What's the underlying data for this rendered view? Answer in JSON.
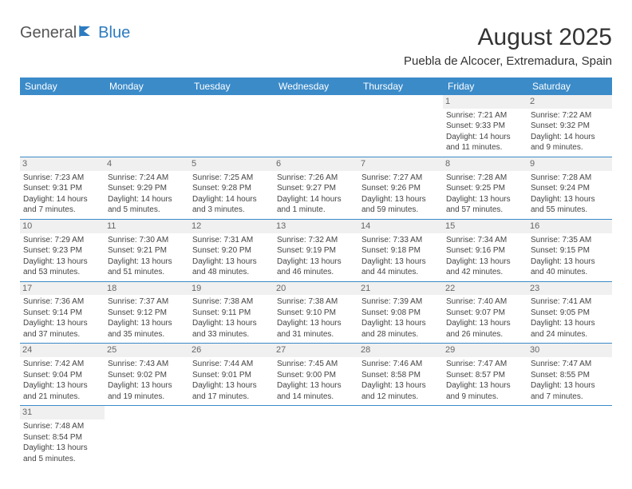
{
  "logo": {
    "text1": "General",
    "text2": "Blue"
  },
  "title": "August 2025",
  "location": "Puebla de Alcocer, Extremadura, Spain",
  "columns": [
    "Sunday",
    "Monday",
    "Tuesday",
    "Wednesday",
    "Thursday",
    "Friday",
    "Saturday"
  ],
  "colors": {
    "header_bg": "#3b8bc9",
    "header_text": "#ffffff",
    "daynum_bg": "#f0f0f0",
    "row_border": "#3b8bc9",
    "logo_blue": "#2d7bc0"
  },
  "weeks": [
    [
      null,
      null,
      null,
      null,
      null,
      {
        "n": "1",
        "sunrise": "7:21 AM",
        "sunset": "9:33 PM",
        "daylight": "14 hours and 11 minutes."
      },
      {
        "n": "2",
        "sunrise": "7:22 AM",
        "sunset": "9:32 PM",
        "daylight": "14 hours and 9 minutes."
      }
    ],
    [
      {
        "n": "3",
        "sunrise": "7:23 AM",
        "sunset": "9:31 PM",
        "daylight": "14 hours and 7 minutes."
      },
      {
        "n": "4",
        "sunrise": "7:24 AM",
        "sunset": "9:29 PM",
        "daylight": "14 hours and 5 minutes."
      },
      {
        "n": "5",
        "sunrise": "7:25 AM",
        "sunset": "9:28 PM",
        "daylight": "14 hours and 3 minutes."
      },
      {
        "n": "6",
        "sunrise": "7:26 AM",
        "sunset": "9:27 PM",
        "daylight": "14 hours and 1 minute."
      },
      {
        "n": "7",
        "sunrise": "7:27 AM",
        "sunset": "9:26 PM",
        "daylight": "13 hours and 59 minutes."
      },
      {
        "n": "8",
        "sunrise": "7:28 AM",
        "sunset": "9:25 PM",
        "daylight": "13 hours and 57 minutes."
      },
      {
        "n": "9",
        "sunrise": "7:28 AM",
        "sunset": "9:24 PM",
        "daylight": "13 hours and 55 minutes."
      }
    ],
    [
      {
        "n": "10",
        "sunrise": "7:29 AM",
        "sunset": "9:23 PM",
        "daylight": "13 hours and 53 minutes."
      },
      {
        "n": "11",
        "sunrise": "7:30 AM",
        "sunset": "9:21 PM",
        "daylight": "13 hours and 51 minutes."
      },
      {
        "n": "12",
        "sunrise": "7:31 AM",
        "sunset": "9:20 PM",
        "daylight": "13 hours and 48 minutes."
      },
      {
        "n": "13",
        "sunrise": "7:32 AM",
        "sunset": "9:19 PM",
        "daylight": "13 hours and 46 minutes."
      },
      {
        "n": "14",
        "sunrise": "7:33 AM",
        "sunset": "9:18 PM",
        "daylight": "13 hours and 44 minutes."
      },
      {
        "n": "15",
        "sunrise": "7:34 AM",
        "sunset": "9:16 PM",
        "daylight": "13 hours and 42 minutes."
      },
      {
        "n": "16",
        "sunrise": "7:35 AM",
        "sunset": "9:15 PM",
        "daylight": "13 hours and 40 minutes."
      }
    ],
    [
      {
        "n": "17",
        "sunrise": "7:36 AM",
        "sunset": "9:14 PM",
        "daylight": "13 hours and 37 minutes."
      },
      {
        "n": "18",
        "sunrise": "7:37 AM",
        "sunset": "9:12 PM",
        "daylight": "13 hours and 35 minutes."
      },
      {
        "n": "19",
        "sunrise": "7:38 AM",
        "sunset": "9:11 PM",
        "daylight": "13 hours and 33 minutes."
      },
      {
        "n": "20",
        "sunrise": "7:38 AM",
        "sunset": "9:10 PM",
        "daylight": "13 hours and 31 minutes."
      },
      {
        "n": "21",
        "sunrise": "7:39 AM",
        "sunset": "9:08 PM",
        "daylight": "13 hours and 28 minutes."
      },
      {
        "n": "22",
        "sunrise": "7:40 AM",
        "sunset": "9:07 PM",
        "daylight": "13 hours and 26 minutes."
      },
      {
        "n": "23",
        "sunrise": "7:41 AM",
        "sunset": "9:05 PM",
        "daylight": "13 hours and 24 minutes."
      }
    ],
    [
      {
        "n": "24",
        "sunrise": "7:42 AM",
        "sunset": "9:04 PM",
        "daylight": "13 hours and 21 minutes."
      },
      {
        "n": "25",
        "sunrise": "7:43 AM",
        "sunset": "9:02 PM",
        "daylight": "13 hours and 19 minutes."
      },
      {
        "n": "26",
        "sunrise": "7:44 AM",
        "sunset": "9:01 PM",
        "daylight": "13 hours and 17 minutes."
      },
      {
        "n": "27",
        "sunrise": "7:45 AM",
        "sunset": "9:00 PM",
        "daylight": "13 hours and 14 minutes."
      },
      {
        "n": "28",
        "sunrise": "7:46 AM",
        "sunset": "8:58 PM",
        "daylight": "13 hours and 12 minutes."
      },
      {
        "n": "29",
        "sunrise": "7:47 AM",
        "sunset": "8:57 PM",
        "daylight": "13 hours and 9 minutes."
      },
      {
        "n": "30",
        "sunrise": "7:47 AM",
        "sunset": "8:55 PM",
        "daylight": "13 hours and 7 minutes."
      }
    ],
    [
      {
        "n": "31",
        "sunrise": "7:48 AM",
        "sunset": "8:54 PM",
        "daylight": "13 hours and 5 minutes."
      },
      null,
      null,
      null,
      null,
      null,
      null
    ]
  ],
  "labels": {
    "sunrise": "Sunrise:",
    "sunset": "Sunset:",
    "daylight": "Daylight:"
  }
}
